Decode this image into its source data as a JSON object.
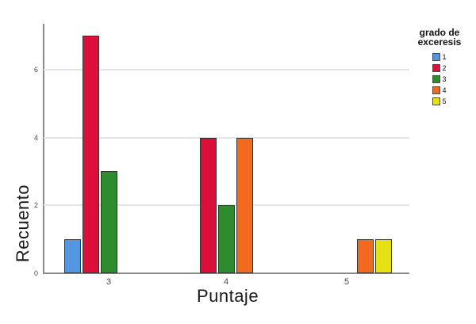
{
  "chart_data": {
    "type": "bar",
    "title": "",
    "xlabel": "Puntaje",
    "ylabel": "Recuento",
    "legend_title": "grado de exceresis",
    "legend_position": "right",
    "grid": true,
    "categories": [
      "3",
      "4",
      "5"
    ],
    "yticks": [
      0,
      2,
      4,
      6
    ],
    "ylim": [
      0,
      7.35
    ],
    "series": [
      {
        "name": "1",
        "color": "#5596e0",
        "values": [
          1,
          0,
          0
        ]
      },
      {
        "name": "2",
        "color": "#dc0f3a",
        "values": [
          7,
          4,
          0
        ]
      },
      {
        "name": "3",
        "color": "#2e8b2e",
        "values": [
          3,
          2,
          0
        ]
      },
      {
        "name": "4",
        "color": "#f26a1e",
        "values": [
          0,
          4,
          1
        ]
      },
      {
        "name": "5",
        "color": "#e7e014",
        "values": [
          0,
          0,
          1
        ]
      }
    ],
    "axis_color": "#8a8a8a",
    "gridline_color": "#e4e4e4",
    "bar_border_color": "#333333"
  }
}
